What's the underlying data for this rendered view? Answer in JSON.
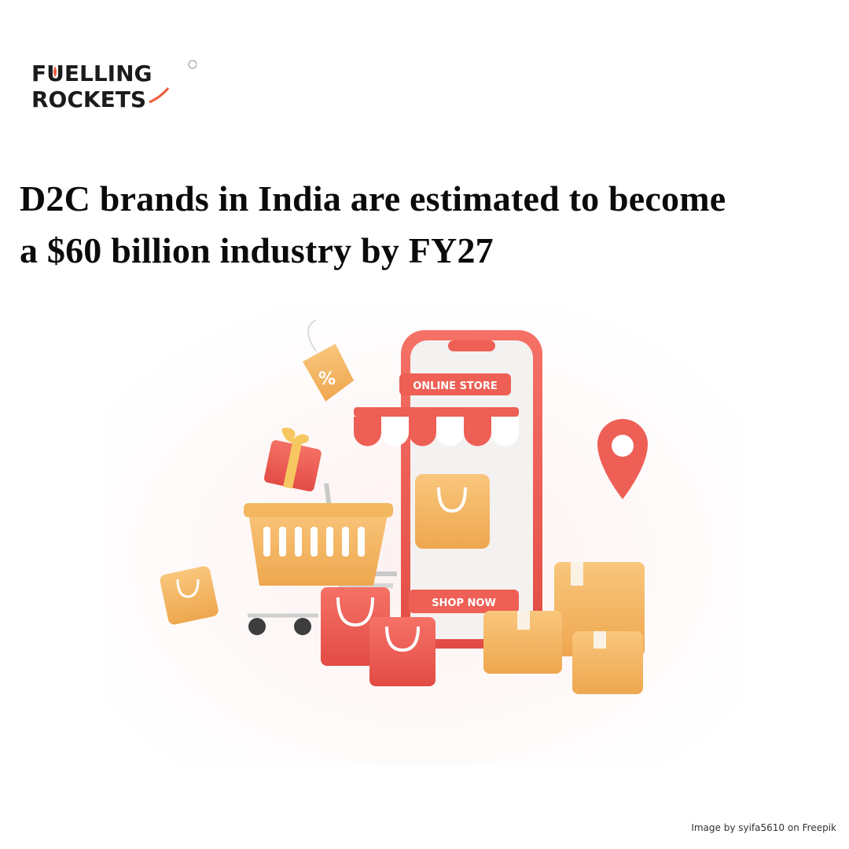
{
  "brand": {
    "line1": "FUELLING",
    "line2": "ROCKETS",
    "accent_color": "#ef5a3c",
    "trademark": "TM"
  },
  "headline": {
    "line1": "D2C brands in India are estimated to become",
    "line2": "a $60 billion industry by FY27"
  },
  "illustration": {
    "icons": [
      "smartphone-icon",
      "shopping-cart-icon",
      "gift-box-icon",
      "discount-tag-icon",
      "location-pin-icon",
      "shopping-bag-icon",
      "package-box-icon"
    ],
    "phone_banner": "ONLINE STORE",
    "phone_button": "SHOP NOW",
    "tag_text": "%",
    "colors": {
      "red": "#ee5f55",
      "orange": "#f6b865",
      "pink_bg": "#fbeeed"
    }
  },
  "credit": "Image by syifa5610 on Freepik"
}
